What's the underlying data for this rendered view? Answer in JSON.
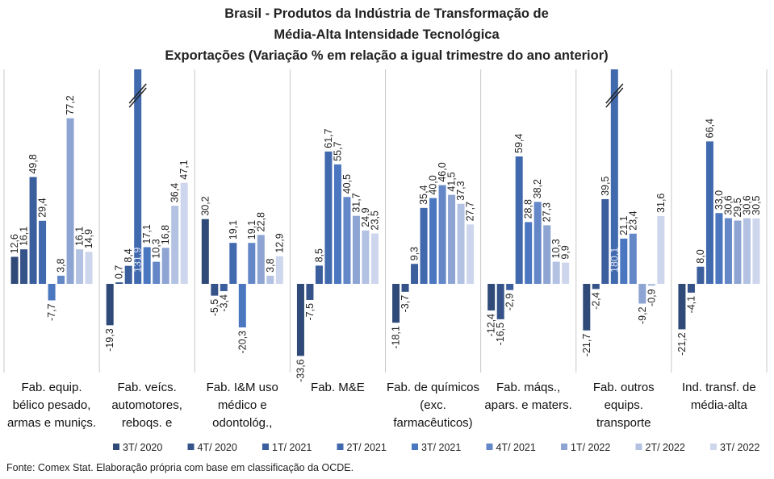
{
  "chart_data": {
    "type": "bar",
    "title": [
      "Brasil - Produtos da Indústria de Transformação de",
      "Média-Alta Intensidade Tecnológica",
      "Exportações (Variação % em relação a igual trimestre do ano anterior)"
    ],
    "source": "Fonte: Comex Stat. Elaboração própria com base em classificação da OCDE.",
    "categories": [
      "Fab. equip. bélico pesado, armas e muniçs.",
      "Fab. veícs. automotores, reboqs. e",
      "Fab. I&M uso médico e odontológ.,",
      "Fab. M&E",
      "Fab. de químicos (exc. farmacêuticos)",
      "Fab. máqs., apars. e maters.",
      "Fab. outros equips. transporte",
      "Ind. transf. de média-alta"
    ],
    "ylim": [
      -40,
      100
    ],
    "series": [
      {
        "name": "3T/ 2020",
        "color": "#2f4a78",
        "values": [
          12.6,
          -19.3,
          30.2,
          -33.6,
          -18.1,
          -12.4,
          -21.7,
          -21.2
        ],
        "value_labels": [
          "12,6",
          "-19,3",
          "30,2",
          "-33,6",
          "-18,1",
          "-12,4",
          "-21,7",
          "-21,2"
        ]
      },
      {
        "name": "4T/ 2020",
        "color": "#355389",
        "values": [
          16.1,
          0.7,
          -5.5,
          -7.5,
          -3.7,
          -16.5,
          -2.4,
          -4.1
        ],
        "value_labels": [
          "16,1",
          "0,7",
          "-5,5",
          "-7,5",
          "-3,7",
          "-16,5",
          "-2,4",
          "-4,1"
        ]
      },
      {
        "name": "1T/ 2021",
        "color": "#3b5e9c",
        "values": [
          49.8,
          8.4,
          -3.4,
          8.5,
          9.3,
          -2.9,
          39.5,
          8.0
        ],
        "value_labels": [
          "49,8",
          "8,4",
          "-3,4",
          "8,5",
          "9,3",
          "-2,9",
          "39,5",
          "8,0"
        ]
      },
      {
        "name": "2T/ 2021",
        "color": "#4169ae",
        "values": [
          29.4,
          131.9,
          19.1,
          61.7,
          35.4,
          59.4,
          180.1,
          66.4
        ],
        "value_labels": [
          "29,4",
          "131,9",
          "19,1",
          "61,7",
          "35,4",
          "59,4",
          "180,1",
          "66,4"
        ]
      },
      {
        "name": "3T/ 2021",
        "color": "#4a77c0",
        "values": [
          -7.7,
          17.1,
          -20.3,
          55.7,
          40.0,
          28.8,
          21.1,
          33.0
        ],
        "value_labels": [
          "-7,7",
          "17,1",
          "-20,3",
          "55,7",
          "40,0",
          "28,8",
          "21,1",
          "33,0"
        ]
      },
      {
        "name": "4T/ 2021",
        "color": "#6487c8",
        "values": [
          3.8,
          10.3,
          19.1,
          40.5,
          46.0,
          38.2,
          23.4,
          30.6
        ],
        "value_labels": [
          "3,8",
          "10,3",
          "19,1",
          "40,5",
          "46,0",
          "38,2",
          "23,4",
          "30,6"
        ]
      },
      {
        "name": "1T/ 2022",
        "color": "#8ea4d3",
        "values": [
          77.2,
          16.8,
          22.8,
          31.7,
          41.5,
          27.3,
          -9.2,
          29.5
        ],
        "value_labels": [
          "77,2",
          "16,8",
          "22,8",
          "31,7",
          "41,5",
          "27,3",
          "-9,2",
          "29,5"
        ]
      },
      {
        "name": "2T/ 2022",
        "color": "#b3c2e3",
        "values": [
          16.1,
          36.4,
          3.8,
          24.9,
          37.3,
          10.3,
          -0.9,
          30.6
        ],
        "value_labels": [
          "16,1",
          "36,4",
          "3,8",
          "24,9",
          "37,3",
          "10,3",
          "-0,9",
          "30,6"
        ]
      },
      {
        "name": "3T/ 2022",
        "color": "#cdd6ec",
        "values": [
          14.9,
          47.1,
          12.9,
          23.5,
          27.7,
          9.9,
          31.6,
          30.5
        ],
        "value_labels": [
          "14,9",
          "47,1",
          "12,9",
          "23,5",
          "27,7",
          "9,9",
          "31,6",
          "30,5"
        ]
      }
    ]
  }
}
